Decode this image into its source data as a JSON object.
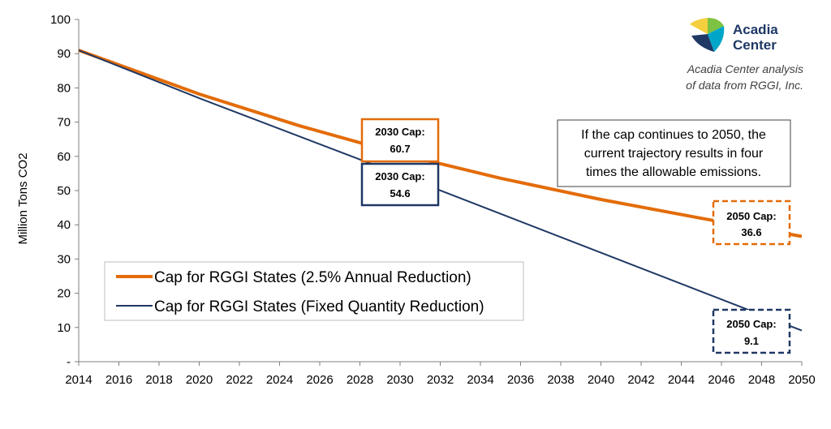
{
  "chart_data": {
    "type": "line",
    "xlabel": "",
    "ylabel": "Million Tons CO2",
    "xlim": [
      2014,
      2050
    ],
    "ylim": [
      0,
      100
    ],
    "x_ticks": [
      "2014",
      "2016",
      "2018",
      "2020",
      "2022",
      "2024",
      "2026",
      "2028",
      "2030",
      "2032",
      "2034",
      "2036",
      "2038",
      "2040",
      "2042",
      "2044",
      "2046",
      "2048",
      "2050"
    ],
    "y_ticks": [
      "-",
      "10",
      "20",
      "30",
      "40",
      "50",
      "60",
      "70",
      "80",
      "90",
      "100"
    ],
    "grid": false,
    "series": [
      {
        "name": "Cap for RGGI States (2.5% Annual Reduction)",
        "color": "#e36c09",
        "x": [
          2014,
          2020,
          2025,
          2030,
          2035,
          2040,
          2045,
          2050
        ],
        "y": [
          91.0,
          78.2,
          68.9,
          60.7,
          53.6,
          47.4,
          41.9,
          36.6
        ]
      },
      {
        "name": "Cap for RGGI States (Fixed Quantity Reduction)",
        "color": "#1f3864",
        "x": [
          2014,
          2020,
          2030,
          2050
        ],
        "y": [
          91.0,
          77.0,
          54.6,
          9.1
        ]
      }
    ],
    "annotations": {
      "cap2030_orange": {
        "line1": "2030 Cap:",
        "line2": "60.7"
      },
      "cap2030_blue": {
        "line1": "2030 Cap:",
        "line2": "54.6"
      },
      "cap2050_orange": {
        "line1": "2050 Cap:",
        "line2": "36.6"
      },
      "cap2050_blue": {
        "line1": "2050 Cap:",
        "line2": "9.1"
      },
      "note": [
        "If the cap continues to 2050, the",
        "current trajectory results in four",
        "times the allowable emissions."
      ]
    }
  },
  "logo": {
    "line1": "Acadia",
    "line2": "Center",
    "colors": [
      "#f4d03f",
      "#7dc242",
      "#00a6c8",
      "#1f3864"
    ]
  },
  "source": {
    "line1": "Acadia Center analysis",
    "line2": "of data from RGGI, Inc."
  },
  "colors": {
    "orange": "#e36c09",
    "navy": "#1f3864",
    "axis": "#7f7f7f"
  }
}
